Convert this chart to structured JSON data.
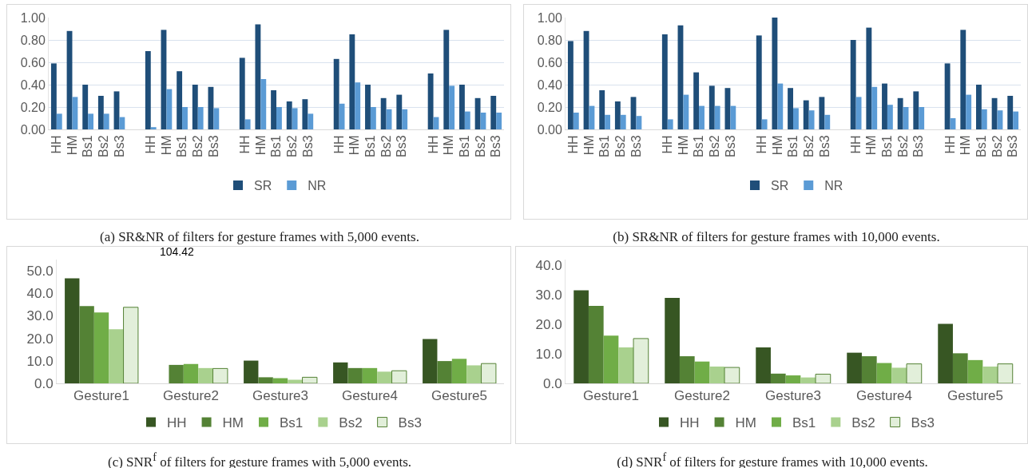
{
  "chart_data": [
    {
      "type": "bar",
      "title": "(a) SR&NR of filters for gesture frames with 5,000 events.",
      "categories": [
        "HH",
        "HM",
        "Bs1",
        "Bs2",
        "Bs3",
        null,
        "HH",
        "HM",
        "Bs1",
        "Bs2",
        "Bs3",
        null,
        "HH",
        "HM",
        "Bs1",
        "Bs2",
        "Bs3",
        null,
        "HH",
        "HM",
        "Bs1",
        "Bs2",
        "Bs3",
        null,
        "HH",
        "HM",
        "Bs1",
        "Bs2",
        "Bs3"
      ],
      "series": [
        {
          "name": "SR",
          "color": "#1f4e79",
          "values": [
            0.59,
            0.88,
            0.4,
            0.3,
            0.34,
            null,
            0.7,
            0.89,
            0.52,
            0.4,
            0.38,
            null,
            0.64,
            0.94,
            0.35,
            0.25,
            0.27,
            null,
            0.63,
            0.85,
            0.4,
            0.28,
            0.31,
            null,
            0.5,
            0.89,
            0.4,
            0.28,
            0.3
          ]
        },
        {
          "name": "NR",
          "color": "#5b9bd5",
          "values": [
            0.14,
            0.29,
            0.14,
            0.14,
            0.11,
            null,
            0.02,
            0.36,
            0.2,
            0.2,
            0.19,
            null,
            0.09,
            0.45,
            0.2,
            0.19,
            0.14,
            null,
            0.23,
            0.42,
            0.2,
            0.18,
            0.18,
            null,
            0.11,
            0.39,
            0.16,
            0.15,
            0.15
          ]
        }
      ],
      "ylim": [
        0,
        1.0
      ],
      "yticks": [
        {
          "value": 0,
          "label": "0.00"
        },
        {
          "value": 0.2,
          "label": "0.20"
        },
        {
          "value": 0.4,
          "label": "0.40"
        },
        {
          "value": 0.6,
          "label": "0.60"
        },
        {
          "value": 0.8,
          "label": "0.80"
        },
        {
          "value": 1,
          "label": "1.00"
        }
      ],
      "grid": "y",
      "legend": "bottom"
    },
    {
      "type": "bar",
      "title": "(b) SR&NR of filters for gesture frames with 10,000 events.",
      "categories": [
        "HH",
        "HM",
        "Bs1",
        "Bs2",
        "Bs3",
        null,
        "HH",
        "HM",
        "Bs1",
        "Bs2",
        "Bs3",
        null,
        "HH",
        "HM",
        "Bs1",
        "Bs2",
        "Bs3",
        null,
        "HH",
        "HM",
        "Bs1",
        "Bs2",
        "Bs3",
        null,
        "HH",
        "HM",
        "Bs1",
        "Bs2",
        "Bs3"
      ],
      "series": [
        {
          "name": "SR",
          "color": "#1f4e79",
          "values": [
            0.79,
            0.88,
            0.35,
            0.25,
            0.29,
            null,
            0.85,
            0.93,
            0.51,
            0.39,
            0.37,
            null,
            0.84,
            1.0,
            0.37,
            0.26,
            0.29,
            null,
            0.8,
            0.91,
            0.41,
            0.28,
            0.34,
            null,
            0.59,
            0.89,
            0.4,
            0.28,
            0.3
          ]
        },
        {
          "name": "NR",
          "color": "#5b9bd5",
          "values": [
            0.15,
            0.21,
            0.13,
            0.13,
            0.12,
            null,
            0.09,
            0.31,
            0.21,
            0.21,
            0.21,
            null,
            0.09,
            0.41,
            0.19,
            0.17,
            0.13,
            null,
            0.29,
            0.38,
            0.22,
            0.2,
            0.2,
            null,
            0.1,
            0.31,
            0.18,
            0.17,
            0.16
          ]
        }
      ],
      "ylim": [
        0,
        1.0
      ],
      "yticks": [
        {
          "value": 0,
          "label": "0.00"
        },
        {
          "value": 0.2,
          "label": "0.20"
        },
        {
          "value": 0.4,
          "label": "0.40"
        },
        {
          "value": 0.6,
          "label": "0.60"
        },
        {
          "value": 0.8,
          "label": "0.80"
        },
        {
          "value": 1,
          "label": "1.00"
        }
      ],
      "grid": "y",
      "legend": "bottom"
    },
    {
      "type": "bar",
      "title": "(c) SNR$^{f}$ of filters for gesture frames with 5,000 events.",
      "categories": [
        "Gesture1",
        "Gesture2",
        "Gesture3",
        "Gesture4",
        "Gesture5"
      ],
      "series": [
        {
          "name": "HH",
          "color": "#375623",
          "values": [
            46.7,
            null,
            10.1,
            9.3,
            19.7
          ],
          "value_labels": [
            null,
            "104.42",
            null,
            null,
            null
          ]
        },
        {
          "name": "HM",
          "color": "#548235",
          "values": [
            34.3,
            8.2,
            2.7,
            6.8,
            9.9
          ]
        },
        {
          "name": "Bs1",
          "color": "#70ad47",
          "values": [
            31.5,
            8.6,
            2.3,
            6.8,
            10.9
          ]
        },
        {
          "name": "Bs2",
          "color": "#a9d18e",
          "values": [
            24.0,
            6.8,
            1.6,
            5.2,
            8.0
          ]
        },
        {
          "name": "Bs3",
          "color": "#e2efda",
          "values": [
            33.8,
            6.6,
            2.7,
            5.6,
            8.8
          ]
        }
      ],
      "ylim": [
        0,
        55
      ],
      "yticks": [
        {
          "value": 0,
          "label": "0.0"
        },
        {
          "value": 10,
          "label": "10.0"
        },
        {
          "value": 20,
          "label": "20.0"
        },
        {
          "value": 30,
          "label": "30.0"
        },
        {
          "value": 40,
          "label": "40.0"
        },
        {
          "value": 50,
          "label": "50.0"
        }
      ],
      "legend": "bottom"
    },
    {
      "type": "bar",
      "title": "(d) SNR$^{f}$ of filters for gesture frames with 10,000 events.",
      "categories": [
        "Gesture1",
        "Gesture2",
        "Gesture3",
        "Gesture4",
        "Gesture5"
      ],
      "series": [
        {
          "name": "HH",
          "color": "#375623",
          "values": [
            31.6,
            29.0,
            12.2,
            10.4,
            20.2
          ]
        },
        {
          "name": "HM",
          "color": "#548235",
          "values": [
            26.3,
            9.2,
            3.3,
            9.2,
            10.2
          ]
        },
        {
          "name": "Bs1",
          "color": "#70ad47",
          "values": [
            16.2,
            7.4,
            2.7,
            6.9,
            7.9
          ]
        },
        {
          "name": "Bs2",
          "color": "#a9d18e",
          "values": [
            12.2,
            5.7,
            2.0,
            5.3,
            5.7
          ]
        },
        {
          "name": "Bs3",
          "color": "#e2efda",
          "values": [
            15.2,
            5.4,
            3.1,
            6.6,
            6.6
          ]
        }
      ],
      "ylim": [
        0,
        42
      ],
      "yticks": [
        {
          "value": 0,
          "label": "0.0"
        },
        {
          "value": 10,
          "label": "10.0"
        },
        {
          "value": 20,
          "label": "20.0"
        },
        {
          "value": 30,
          "label": "30.0"
        },
        {
          "value": 40,
          "label": "40.0"
        }
      ],
      "legend": "bottom"
    }
  ]
}
